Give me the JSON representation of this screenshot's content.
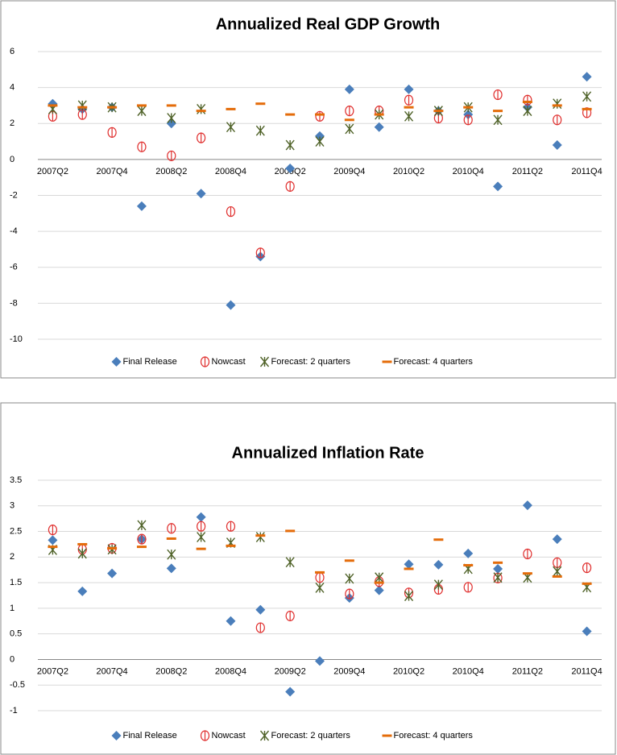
{
  "chart_data": [
    {
      "type": "scatter",
      "title": "Annualized Real GDP Growth",
      "categories": [
        "2007Q2",
        null,
        "2007Q4",
        null,
        "2008Q2",
        null,
        "2008Q4",
        null,
        "2009Q2",
        null,
        "2009Q4",
        null,
        "2010Q2",
        null,
        "2010Q4",
        null,
        "2011Q2",
        null,
        "2011Q4"
      ],
      "ylim": [
        -10,
        6
      ],
      "yticks": [
        -10,
        -8,
        -6,
        -4,
        -2,
        0,
        2,
        4,
        6
      ],
      "grid": true,
      "legend": "bottom",
      "series": [
        {
          "name": "Final Release",
          "color": "#4a7ebb",
          "marker": "diamond",
          "values": [
            3.1,
            2.8,
            2.9,
            -2.6,
            2.0,
            -1.9,
            -8.1,
            -5.4,
            -0.5,
            1.3,
            3.9,
            1.8,
            3.9,
            2.7,
            2.5,
            -1.5,
            2.9,
            0.8,
            4.6
          ]
        },
        {
          "name": "Nowcast",
          "color": "#e0302f",
          "marker": "circle",
          "values": [
            2.4,
            2.5,
            1.5,
            0.7,
            0.2,
            1.2,
            -2.9,
            -5.2,
            -1.5,
            2.4,
            2.7,
            2.7,
            3.3,
            2.3,
            2.2,
            3.6,
            3.3,
            2.2,
            2.6
          ]
        },
        {
          "name": "Forecast: 2 quarters",
          "color": "#4f6228",
          "marker": "star",
          "values": [
            2.8,
            3.0,
            2.9,
            2.7,
            2.3,
            2.8,
            1.8,
            1.6,
            0.8,
            1.0,
            1.7,
            2.5,
            2.4,
            2.7,
            2.9,
            2.2,
            2.7,
            3.1,
            3.5
          ]
        },
        {
          "name": "Forecast: 4 quarters",
          "color": "#e46c0a",
          "marker": "dash",
          "values": [
            3.0,
            2.9,
            2.9,
            3.0,
            3.0,
            2.7,
            2.8,
            3.1,
            2.5,
            2.5,
            2.2,
            2.5,
            2.9,
            2.7,
            2.9,
            2.7,
            3.2,
            3.0,
            2.8
          ]
        }
      ]
    },
    {
      "type": "scatter",
      "title": "Annualized Inflation Rate",
      "categories": [
        "2007Q2",
        null,
        "2007Q4",
        null,
        "2008Q2",
        null,
        "2008Q4",
        null,
        "2009Q2",
        null,
        "2009Q4",
        null,
        "2010Q2",
        null,
        "2010Q4",
        null,
        "2011Q2",
        null,
        "2011Q4"
      ],
      "ylim": [
        -1,
        3.5
      ],
      "yticks": [
        -1,
        -0.5,
        0,
        0.5,
        1,
        1.5,
        2,
        2.5,
        3,
        3.5
      ],
      "grid": true,
      "legend": "bottom",
      "series": [
        {
          "name": "Final Release",
          "color": "#4a7ebb",
          "marker": "diamond",
          "values": [
            2.33,
            1.33,
            1.68,
            2.35,
            1.78,
            2.78,
            0.75,
            0.97,
            -0.63,
            -0.03,
            1.2,
            1.35,
            1.86,
            1.85,
            2.07,
            1.77,
            3.01,
            2.35,
            0.55
          ]
        },
        {
          "name": "Nowcast",
          "color": "#e0302f",
          "marker": "circle",
          "values": [
            2.53,
            2.15,
            2.17,
            2.35,
            2.56,
            2.6,
            2.6,
            0.62,
            0.85,
            1.6,
            1.28,
            1.52,
            1.3,
            1.37,
            1.41,
            1.59,
            2.06,
            1.89,
            1.79
          ]
        },
        {
          "name": "Forecast: 2 quarters",
          "color": "#4f6228",
          "marker": "star",
          "values": [
            2.14,
            2.07,
            2.15,
            2.62,
            2.05,
            2.39,
            2.28,
            2.39,
            1.9,
            1.4,
            1.58,
            1.6,
            1.24,
            1.46,
            1.77,
            1.6,
            1.6,
            1.72,
            1.41
          ]
        },
        {
          "name": "Forecast: 4 quarters",
          "color": "#e46c0a",
          "marker": "dash",
          "values": [
            2.2,
            2.25,
            2.17,
            2.2,
            2.36,
            2.16,
            2.22,
            2.42,
            2.51,
            1.7,
            1.93,
            1.5,
            1.77,
            2.34,
            1.84,
            1.89,
            1.68,
            1.62,
            1.48
          ]
        }
      ]
    }
  ]
}
